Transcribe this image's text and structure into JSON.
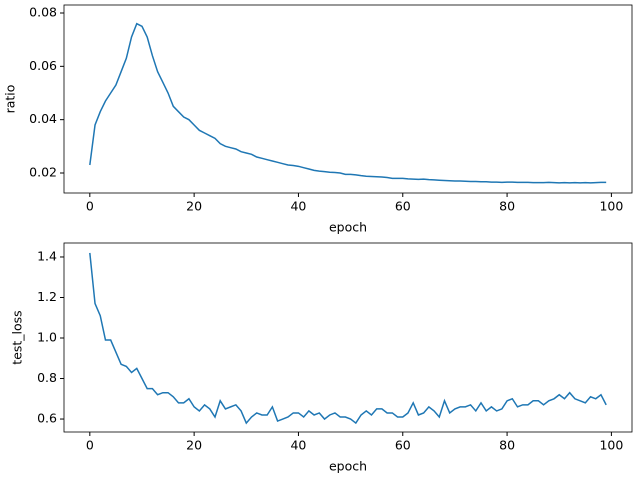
{
  "chart_data": [
    {
      "type": "line",
      "xlabel": "epoch",
      "ylabel": "ratio",
      "x": [
        0,
        1,
        2,
        3,
        4,
        5,
        6,
        7,
        8,
        9,
        10,
        11,
        12,
        13,
        14,
        15,
        16,
        17,
        18,
        19,
        20,
        21,
        22,
        23,
        24,
        25,
        26,
        27,
        28,
        29,
        30,
        31,
        32,
        33,
        34,
        35,
        36,
        37,
        38,
        39,
        40,
        41,
        42,
        43,
        44,
        45,
        46,
        47,
        48,
        49,
        50,
        51,
        52,
        53,
        54,
        55,
        56,
        57,
        58,
        59,
        60,
        61,
        62,
        63,
        64,
        65,
        66,
        67,
        68,
        69,
        70,
        71,
        72,
        73,
        74,
        75,
        76,
        77,
        78,
        79,
        80,
        81,
        82,
        83,
        84,
        85,
        86,
        87,
        88,
        89,
        90,
        91,
        92,
        93,
        94,
        95,
        96,
        97,
        98,
        99
      ],
      "series": [
        {
          "color": "#1f77b4",
          "values": [
            0.023,
            0.038,
            0.043,
            0.047,
            0.05,
            0.053,
            0.058,
            0.063,
            0.071,
            0.076,
            0.075,
            0.071,
            0.064,
            0.058,
            0.054,
            0.05,
            0.045,
            0.043,
            0.041,
            0.04,
            0.038,
            0.036,
            0.035,
            0.034,
            0.033,
            0.031,
            0.03,
            0.0295,
            0.029,
            0.028,
            0.0275,
            0.027,
            0.026,
            0.0255,
            0.025,
            0.0245,
            0.024,
            0.0235,
            0.023,
            0.0228,
            0.0225,
            0.022,
            0.0215,
            0.021,
            0.0207,
            0.0205,
            0.0203,
            0.0202,
            0.02,
            0.0195,
            0.0195,
            0.0193,
            0.019,
            0.0188,
            0.0187,
            0.0186,
            0.0185,
            0.0183,
            0.018,
            0.018,
            0.018,
            0.0178,
            0.0177,
            0.0176,
            0.0177,
            0.0175,
            0.0174,
            0.0173,
            0.0172,
            0.0171,
            0.017,
            0.017,
            0.0169,
            0.0168,
            0.0168,
            0.0167,
            0.0167,
            0.0166,
            0.0166,
            0.0165,
            0.0166,
            0.0166,
            0.0165,
            0.0165,
            0.0165,
            0.0164,
            0.0164,
            0.0164,
            0.0165,
            0.0164,
            0.0163,
            0.0164,
            0.0163,
            0.0164,
            0.0163,
            0.0164,
            0.0163,
            0.0164,
            0.0165,
            0.0165
          ]
        }
      ],
      "xlim": [
        -4.95,
        103.95
      ],
      "xticks": [
        0,
        20,
        40,
        60,
        80,
        100
      ],
      "ylim": [
        0.0125,
        0.083
      ],
      "yticks": [
        0.02,
        0.04,
        0.06,
        0.08
      ]
    },
    {
      "type": "line",
      "xlabel": "epoch",
      "ylabel": "test_loss",
      "x": [
        0,
        1,
        2,
        3,
        4,
        5,
        6,
        7,
        8,
        9,
        10,
        11,
        12,
        13,
        14,
        15,
        16,
        17,
        18,
        19,
        20,
        21,
        22,
        23,
        24,
        25,
        26,
        27,
        28,
        29,
        30,
        31,
        32,
        33,
        34,
        35,
        36,
        37,
        38,
        39,
        40,
        41,
        42,
        43,
        44,
        45,
        46,
        47,
        48,
        49,
        50,
        51,
        52,
        53,
        54,
        55,
        56,
        57,
        58,
        59,
        60,
        61,
        62,
        63,
        64,
        65,
        66,
        67,
        68,
        69,
        70,
        71,
        72,
        73,
        74,
        75,
        76,
        77,
        78,
        79,
        80,
        81,
        82,
        83,
        84,
        85,
        86,
        87,
        88,
        89,
        90,
        91,
        92,
        93,
        94,
        95,
        96,
        97,
        98,
        99
      ],
      "series": [
        {
          "color": "#1f77b4",
          "values": [
            1.42,
            1.17,
            1.11,
            0.99,
            0.99,
            0.93,
            0.87,
            0.86,
            0.83,
            0.85,
            0.8,
            0.75,
            0.75,
            0.72,
            0.73,
            0.73,
            0.71,
            0.68,
            0.68,
            0.7,
            0.66,
            0.64,
            0.67,
            0.65,
            0.61,
            0.69,
            0.65,
            0.66,
            0.67,
            0.64,
            0.58,
            0.61,
            0.63,
            0.62,
            0.62,
            0.66,
            0.59,
            0.6,
            0.61,
            0.63,
            0.63,
            0.61,
            0.64,
            0.62,
            0.63,
            0.6,
            0.62,
            0.63,
            0.61,
            0.61,
            0.6,
            0.58,
            0.62,
            0.64,
            0.62,
            0.65,
            0.65,
            0.63,
            0.63,
            0.61,
            0.61,
            0.63,
            0.68,
            0.62,
            0.63,
            0.66,
            0.64,
            0.61,
            0.69,
            0.63,
            0.65,
            0.66,
            0.66,
            0.67,
            0.64,
            0.68,
            0.64,
            0.66,
            0.64,
            0.65,
            0.69,
            0.7,
            0.66,
            0.67,
            0.67,
            0.69,
            0.69,
            0.67,
            0.69,
            0.7,
            0.72,
            0.7,
            0.73,
            0.7,
            0.69,
            0.68,
            0.71,
            0.7,
            0.72,
            0.67
          ]
        }
      ],
      "xlim": [
        -4.95,
        103.95
      ],
      "xticks": [
        0,
        20,
        40,
        60,
        80,
        100
      ],
      "ylim": [
        0.536,
        1.469
      ],
      "yticks": [
        0.6,
        0.8,
        {
          "value": 1,
          "label": "1.0"
        },
        1.2,
        1.4
      ]
    }
  ]
}
